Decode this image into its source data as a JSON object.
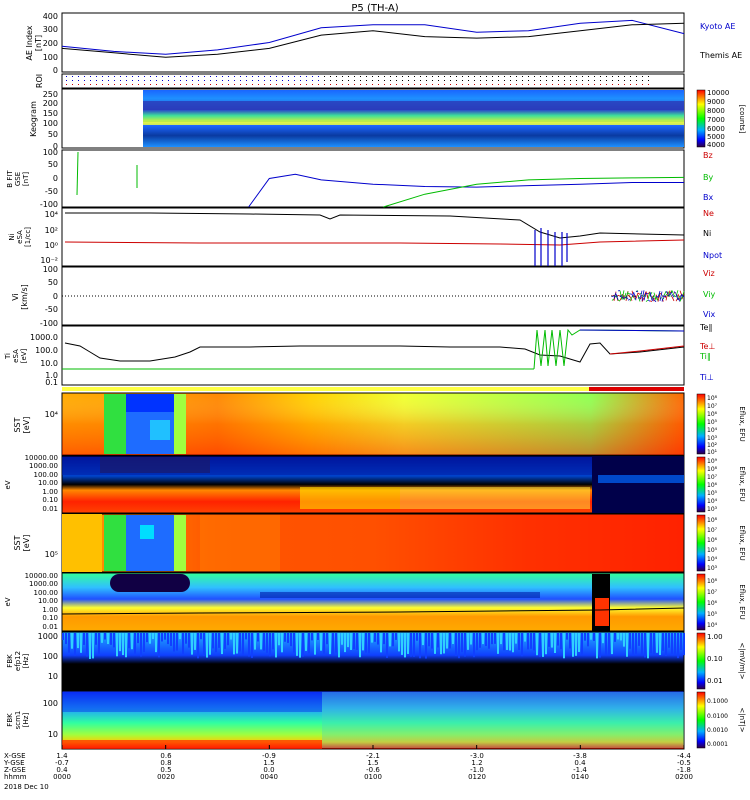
{
  "title": "P5 (TH-A)",
  "date": "2018 Dec 10",
  "panels": {
    "ae": {
      "ylabel": "AE Index",
      "ylabel2": "[nT]",
      "ticks": [
        "400",
        "300",
        "200",
        "100",
        "0"
      ],
      "legend": [
        "Kyoto AE",
        "Themis AE"
      ],
      "colors": [
        "#0000cc",
        "#000000"
      ]
    },
    "roi": {
      "ylabel": "ROI"
    },
    "keogram": {
      "ylabel": "Keogram",
      "ticks": [
        "250",
        "200",
        "150",
        "100",
        "50",
        "0"
      ],
      "cbar": [
        "10000",
        "9000",
        "8000",
        "7000",
        "6000",
        "5000",
        "4000"
      ],
      "cbar_label": "[counts]"
    },
    "bfield": {
      "ylabel": "B FIT",
      "ylabel2": "GSE",
      "ylabel3": "[nT]",
      "ticks": [
        "100",
        "50",
        "0",
        "-50",
        "-100"
      ],
      "legend": [
        "Bz",
        "By",
        "Bx"
      ],
      "colors": [
        "#cc0000",
        "#00bb00",
        "#0000cc"
      ]
    },
    "density": {
      "ylabel": "Ni",
      "ylabel2": "eSA",
      "ylabel3": "[1/cc]",
      "ticks": [
        "10⁴",
        "10²",
        "10⁰",
        "10⁻²"
      ],
      "legend": [
        "Ne",
        "Ni",
        "Npot"
      ],
      "colors": [
        "#cc0000",
        "#000000",
        "#0000cc"
      ]
    },
    "velocity": {
      "ylabel": "Vi",
      "ylabel2": "[km/s]",
      "ticks": [
        "100",
        "50",
        "0",
        "-50",
        "-100"
      ],
      "legend": [
        "Viz",
        "Viy",
        "Vix"
      ],
      "colors": [
        "#cc0000",
        "#00bb00",
        "#0000cc"
      ]
    },
    "temp": {
      "ylabel": "Ti",
      "ylabel2": "eSA",
      "ylabel3": "[eV]",
      "ticks": [
        "1000.0",
        "100.0",
        "10.0",
        "1.0",
        "0.1"
      ],
      "legend": [
        "Te∥",
        "Te⊥",
        "Ti∥",
        "Ti⊥"
      ],
      "colors": [
        "#000000",
        "#cc0000",
        "#00bb00",
        "#0000cc"
      ]
    },
    "sst_e": {
      "ylabel": "SST",
      "ylabel2": "[eV]",
      "ticks": [
        "10⁴"
      ],
      "cbar": [
        "10⁸",
        "10⁷",
        "10⁶",
        "10⁵",
        "10⁴",
        "10³",
        "10²",
        "10¹"
      ],
      "cbar_label": "Eflux, EFU"
    },
    "esa_e": {
      "ylabel": "eV",
      "ticks": [
        "10000.00",
        "1000.00",
        "100.00",
        "10.00",
        "1.00",
        "0.10",
        "0.01"
      ],
      "cbar": [
        "10⁹",
        "10⁸",
        "10⁷",
        "10⁶",
        "10⁵",
        "10⁴",
        "10³"
      ],
      "cbar_label": "Eflux, EFU"
    },
    "sst_i": {
      "ylabel": "SST",
      "ylabel2": "[eV]",
      "ticks": [
        "10⁵"
      ],
      "cbar": [
        "10⁸",
        "10⁷",
        "10⁶",
        "10⁵",
        "10⁴",
        "10³"
      ],
      "cbar_label": "Eflux, EFU"
    },
    "esa_i": {
      "ylabel": "eV",
      "ticks": [
        "10000.00",
        "1000.00",
        "100.00",
        "10.00",
        "1.00",
        "0.10",
        "0.01"
      ],
      "cbar": [
        "10⁸",
        "10⁷",
        "10⁶",
        "10⁵",
        "10⁴"
      ],
      "cbar_label": "Eflux, EFU"
    },
    "fbk_e": {
      "ylabel": "FBK",
      "ylabel2": "efp12",
      "ylabel3": "[Hz]",
      "ticks": [
        "1000",
        "100",
        "10"
      ],
      "cbar": [
        "1.00",
        "0.10",
        "0.01"
      ],
      "cbar_label": "<|mV/m|>"
    },
    "fbk_b": {
      "ylabel": "FBK",
      "ylabel2": "scm1",
      "ylabel3": "[Hz]",
      "ticks": [
        "100",
        "10"
      ],
      "cbar": [
        "0.1000",
        "0.0100",
        "0.0010",
        "0.0001"
      ],
      "cbar_label": "<|nT|>"
    }
  },
  "xaxis": {
    "row_labels": [
      "X-GSE",
      "Y-GSE",
      "Z-GSE",
      "hhmm"
    ],
    "columns": [
      [
        "1.4",
        "-0.7",
        "0.4",
        "0000"
      ],
      [
        "0.6",
        "0.8",
        "0.5",
        "0020"
      ],
      [
        "-0.9",
        "1.5",
        "0.0",
        "0040"
      ],
      [
        "-2.1",
        "1.5",
        "-0.6",
        "0100"
      ],
      [
        "-3.0",
        "1.2",
        "-1.0",
        "0120"
      ],
      [
        "-3.8",
        "0.4",
        "-1.4",
        "0140"
      ],
      [
        "-4.4",
        "-0.5",
        "-1.8",
        "0200"
      ]
    ]
  },
  "chart_data": [
    {
      "type": "line",
      "panel": "AE Index",
      "x_range_hhmm": [
        "0000",
        "0200"
      ],
      "ylim": [
        0,
        400
      ],
      "series": [
        {
          "name": "Kyoto AE",
          "x_min": [
            0,
            10,
            20,
            30,
            40,
            50,
            60,
            70,
            80,
            90,
            100,
            110,
            120
          ],
          "values": [
            175,
            140,
            120,
            150,
            200,
            300,
            320,
            320,
            270,
            280,
            330,
            350,
            260
          ]
        },
        {
          "name": "Themis AE",
          "x_min": [
            0,
            10,
            20,
            30,
            40,
            50,
            60,
            70,
            80,
            90,
            100,
            110,
            120
          ],
          "values": [
            160,
            130,
            100,
            120,
            160,
            250,
            280,
            240,
            230,
            240,
            280,
            320,
            330
          ]
        }
      ]
    },
    {
      "type": "line",
      "panel": "B FIT GSE",
      "ylim": [
        -100,
        100
      ],
      "series": [
        {
          "name": "Bx",
          "x_min": [
            36,
            40,
            45,
            50,
            60,
            70,
            80,
            90,
            100,
            110,
            120
          ],
          "values": [
            -100,
            0,
            15,
            -5,
            -20,
            -28,
            -30,
            -25,
            -20,
            -14,
            -14
          ]
        },
        {
          "name": "By",
          "x_min": [
            62,
            70,
            80,
            90,
            100,
            110,
            120
          ],
          "values": [
            -100,
            -55,
            -20,
            -5,
            0,
            2,
            4
          ]
        }
      ]
    },
    {
      "type": "line",
      "panel": "Vi",
      "ylim": [
        -100,
        100
      ],
      "series": [
        {
          "name": "Vix",
          "x_min": [
            0,
            120
          ],
          "values": [
            0,
            0
          ]
        }
      ]
    }
  ]
}
